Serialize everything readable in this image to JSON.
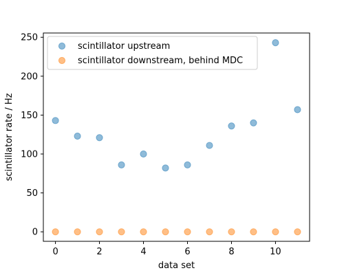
{
  "chart_data": {
    "type": "scatter",
    "title": "",
    "xlabel": "data set",
    "ylabel": "scintillator rate / Hz",
    "xlim": [
      -0.55,
      11.55
    ],
    "ylim": [
      -12.2,
      255.5
    ],
    "xticks": [
      0,
      2,
      4,
      6,
      8,
      10
    ],
    "yticks": [
      0,
      50,
      100,
      150,
      200,
      250
    ],
    "grid": false,
    "legend_position": "top-left",
    "series": [
      {
        "name": "scintillator upstream",
        "color": "#1f77b4",
        "x": [
          0,
          1,
          2,
          3,
          4,
          5,
          6,
          7,
          8,
          9,
          10,
          11
        ],
        "y": [
          143,
          123,
          121,
          86,
          100,
          82,
          86,
          111,
          136,
          140,
          243,
          157
        ]
      },
      {
        "name": "scintillator downstream, behind MDC",
        "color": "#ff7f0e",
        "x": [
          0,
          1,
          2,
          3,
          4,
          5,
          6,
          7,
          8,
          9,
          10,
          11
        ],
        "y": [
          0,
          0,
          0,
          0,
          0,
          0,
          0,
          0,
          0,
          0,
          0,
          0
        ]
      }
    ]
  }
}
